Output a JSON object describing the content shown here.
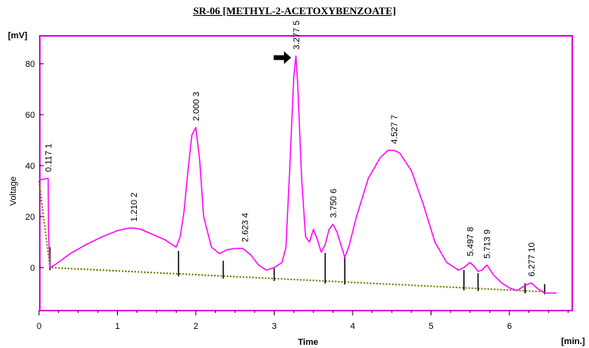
{
  "title": "SR-06 [METHYL-2-ACETOXYBENZOATE]",
  "chart_data": {
    "type": "line",
    "xlabel": "Time",
    "ylabel": "Voltage",
    "x_unit": "[min.]",
    "y_unit": "[mV]",
    "xlim": [
      0,
      7
    ],
    "ylim": [
      -15,
      90
    ],
    "x_ticks": [
      "0",
      "1",
      "2",
      "3",
      "4",
      "5",
      "6"
    ],
    "y_ticks": [
      "0",
      "20",
      "40",
      "60",
      "80"
    ],
    "colors": {
      "signal": "#ff00ff",
      "frame": "#e000e0",
      "baseline": "#7a7a00",
      "marker": "#000000"
    },
    "signal": {
      "x": [
        0,
        0.02,
        0.117,
        0.12,
        0.14,
        0.2,
        0.4,
        0.6,
        0.8,
        1.0,
        1.15,
        1.21,
        1.3,
        1.45,
        1.6,
        1.75,
        1.8,
        1.85,
        1.9,
        1.95,
        2.0,
        2.05,
        2.1,
        2.2,
        2.3,
        2.4,
        2.5,
        2.6,
        2.7,
        2.8,
        2.9,
        3.0,
        3.1,
        3.15,
        3.2,
        3.25,
        3.277,
        3.3,
        3.35,
        3.4,
        3.45,
        3.5,
        3.55,
        3.6,
        3.65,
        3.7,
        3.75,
        3.8,
        3.85,
        3.9,
        3.95,
        4.05,
        4.2,
        4.35,
        4.45,
        4.527,
        4.6,
        4.75,
        4.9,
        5.05,
        5.2,
        5.35,
        5.42,
        5.497,
        5.55,
        5.6,
        5.65,
        5.713,
        5.8,
        5.9,
        6.0,
        6.1,
        6.2,
        6.277,
        6.35,
        6.45,
        6.6
      ],
      "y": [
        34,
        34.5,
        35,
        15,
        0,
        1,
        5.5,
        9,
        12,
        14.5,
        15.5,
        15.5,
        15,
        13,
        11,
        8,
        12,
        22,
        38,
        52,
        55,
        42,
        20,
        8,
        5.5,
        7,
        7.5,
        7.5,
        5,
        1,
        -1,
        0,
        2,
        8,
        40,
        75,
        83,
        72,
        35,
        12,
        10,
        15,
        11,
        6,
        9,
        15,
        17,
        14,
        9,
        4,
        8,
        20,
        35,
        43,
        46,
        46,
        45,
        38,
        25,
        10,
        2,
        -1,
        0,
        2,
        0.5,
        -1.5,
        -1,
        1,
        -3,
        -6,
        -8,
        -9,
        -7,
        -6,
        -8,
        -10,
        -10
      ]
    },
    "baseline": {
      "x": [
        0.0,
        0.14,
        6.45
      ],
      "y": [
        34,
        0,
        -9.5
      ]
    },
    "markers": [
      {
        "x": 0.14,
        "height": 8
      },
      {
        "x": 1.78,
        "height": 9
      },
      {
        "x": 2.35,
        "height": 6
      },
      {
        "x": 3.0,
        "height": 4
      },
      {
        "x": 3.65,
        "height": 11
      },
      {
        "x": 3.9,
        "height": 10
      },
      {
        "x": 5.42,
        "height": 7
      },
      {
        "x": 5.6,
        "height": 6
      },
      {
        "x": 6.2,
        "height": 3
      },
      {
        "x": 6.45,
        "height": 3
      }
    ],
    "peaks": [
      {
        "time": "0.117",
        "number": "1",
        "x": 0.117,
        "y": 35
      },
      {
        "time": "1.210",
        "number": "2",
        "x": 1.21,
        "y": 15.5
      },
      {
        "time": "2.000",
        "number": "3",
        "x": 2.0,
        "y": 55
      },
      {
        "time": "2.623",
        "number": "4",
        "x": 2.623,
        "y": 7.5
      },
      {
        "time": "3.277",
        "number": "5",
        "x": 3.277,
        "y": 83
      },
      {
        "time": "3.750",
        "number": "6",
        "x": 3.75,
        "y": 17
      },
      {
        "time": "4.527",
        "number": "7",
        "x": 4.527,
        "y": 46
      },
      {
        "time": "5.497",
        "number": "8",
        "x": 5.497,
        "y": 2
      },
      {
        "time": "5.713",
        "number": "9",
        "x": 5.713,
        "y": 1
      },
      {
        "time": "6.277",
        "number": "10",
        "x": 6.277,
        "y": -6
      }
    ],
    "arrow_peak": "5"
  }
}
